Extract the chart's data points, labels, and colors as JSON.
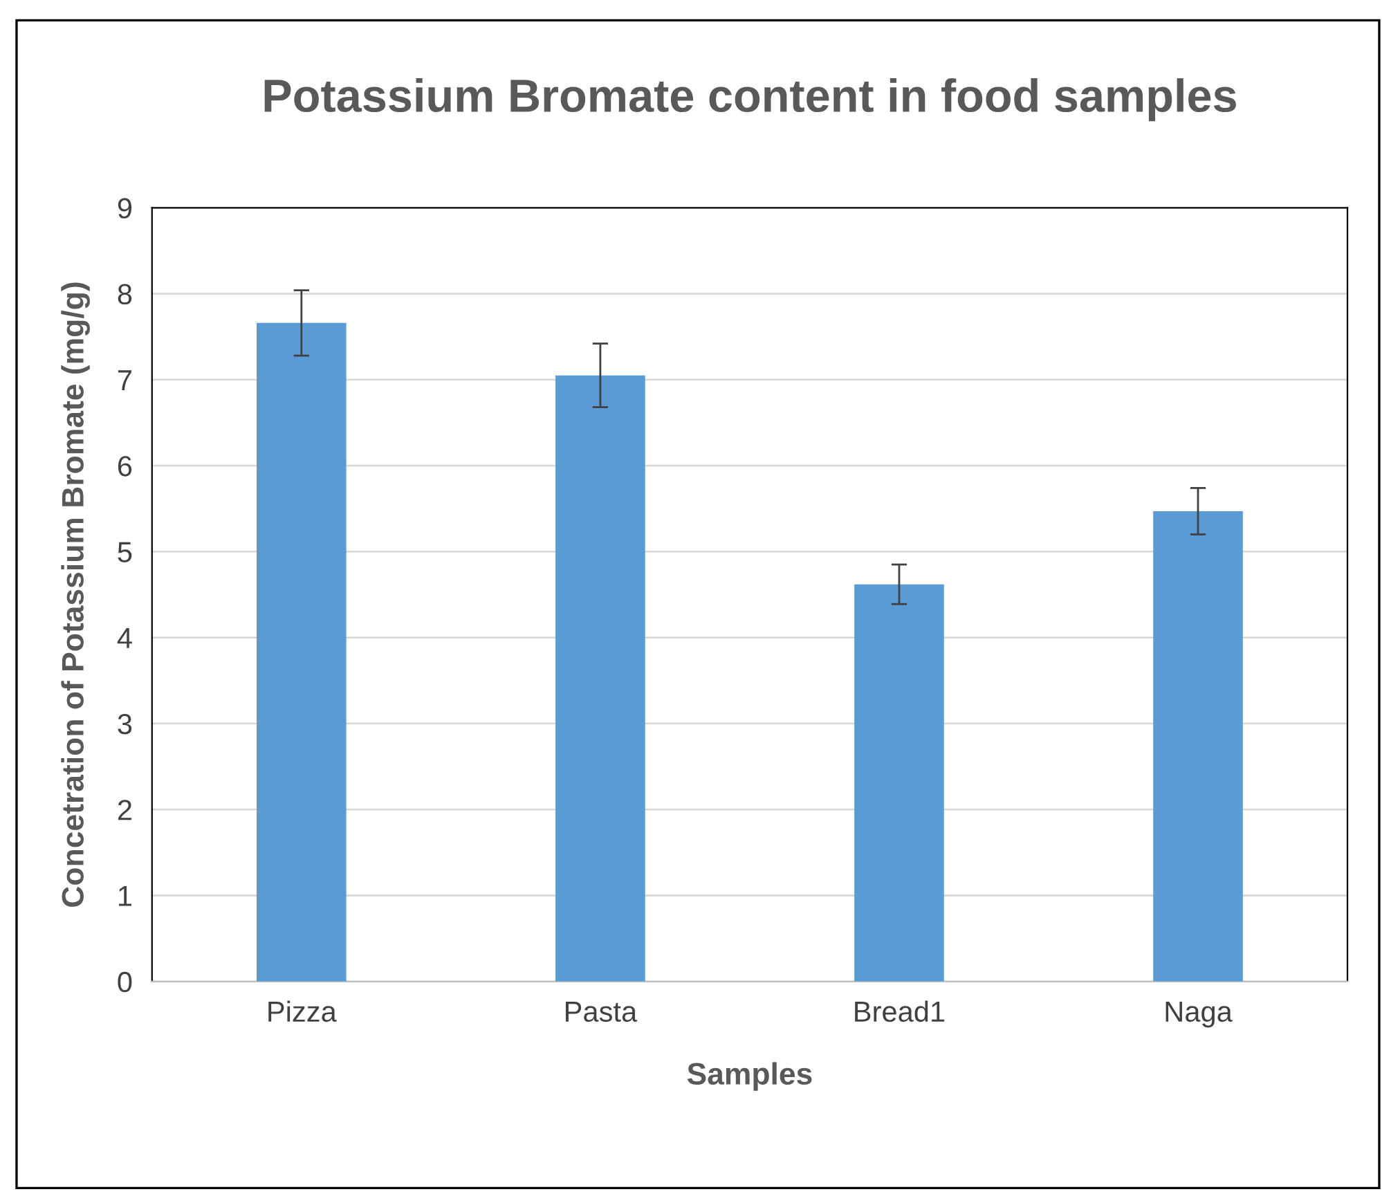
{
  "chart_data": {
    "type": "bar",
    "title": "Potassium Bromate content in food samples",
    "xlabel": "Samples",
    "ylabel": "Concetration of Potassium Bromate (mg/g)",
    "categories": [
      "Pizza",
      "Pasta",
      "Bread1",
      "Naga"
    ],
    "values": [
      7.66,
      7.05,
      4.62,
      5.47
    ],
    "errors": [
      0.38,
      0.37,
      0.23,
      0.27
    ],
    "color": "#5b9bd5",
    "ylim": [
      0,
      9
    ],
    "yticks": [
      0,
      1,
      2,
      3,
      4,
      5,
      6,
      7,
      8,
      9
    ],
    "grid": "y",
    "legend": false
  }
}
